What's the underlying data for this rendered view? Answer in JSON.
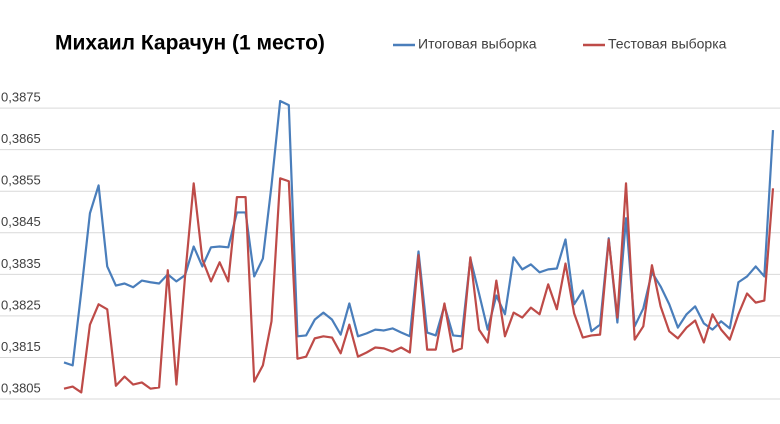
{
  "chart_data": {
    "type": "line",
    "title": "Михаил Карачун  (1 место)",
    "ylim": [
      0.3799,
      0.3901
    ],
    "yticks": [
      {
        "value": 0.3805,
        "label": "0,3805"
      },
      {
        "value": 0.3815,
        "label": "0,3815"
      },
      {
        "value": 0.3825,
        "label": "0,3825"
      },
      {
        "value": 0.3835,
        "label": "0,3835"
      },
      {
        "value": 0.3845,
        "label": "0,3845"
      },
      {
        "value": 0.3855,
        "label": "0,3855"
      },
      {
        "value": 0.3865,
        "label": "0,3865"
      },
      {
        "value": 0.3875,
        "label": "0,3875"
      }
    ],
    "grid": true,
    "series": [
      {
        "name": "Итоговая выборка",
        "color": "#4a7ebb",
        "values": [
          0.38138,
          0.38131,
          0.38309,
          0.38497,
          0.38564,
          0.38369,
          0.38323,
          0.38328,
          0.38319,
          0.38335,
          0.38331,
          0.38328,
          0.3835,
          0.38333,
          0.38348,
          0.38417,
          0.38369,
          0.38415,
          0.38417,
          0.38415,
          0.38499,
          0.38499,
          0.38345,
          0.38388,
          0.38564,
          0.38767,
          0.38757,
          0.38201,
          0.38203,
          0.38241,
          0.38258,
          0.38241,
          0.38205,
          0.3828,
          0.38201,
          0.38208,
          0.38217,
          0.38215,
          0.3822,
          0.3821,
          0.38201,
          0.38405,
          0.3821,
          0.38203,
          0.38275,
          0.38203,
          0.38201,
          0.38388,
          0.38304,
          0.38217,
          0.38299,
          0.38254,
          0.38391,
          0.38362,
          0.38374,
          0.38355,
          0.38362,
          0.38364,
          0.38434,
          0.38278,
          0.38311,
          0.38213,
          0.38229,
          0.38437,
          0.38234,
          0.38485,
          0.38225,
          0.38268,
          0.38355,
          0.38321,
          0.38278,
          0.38222,
          0.38254,
          0.38273,
          0.38232,
          0.38217,
          0.38237,
          0.3822,
          0.38331,
          0.38345,
          0.38369,
          0.38345,
          0.38697
        ]
      },
      {
        "name": "Тестовая выборка",
        "color": "#be4b48",
        "values": [
          0.38075,
          0.3808,
          0.38066,
          0.38229,
          0.38278,
          0.38266,
          0.38082,
          0.38104,
          0.38085,
          0.3809,
          0.38075,
          0.38078,
          0.3836,
          0.38085,
          0.38345,
          0.38569,
          0.38386,
          0.38333,
          0.38379,
          0.38333,
          0.38536,
          0.38536,
          0.38092,
          0.38131,
          0.38237,
          0.38581,
          0.38574,
          0.38147,
          0.38152,
          0.38196,
          0.38201,
          0.38198,
          0.3816,
          0.38229,
          0.38152,
          0.38162,
          0.38174,
          0.38172,
          0.38164,
          0.38174,
          0.38162,
          0.38396,
          0.38169,
          0.38169,
          0.3828,
          0.38164,
          0.38172,
          0.38391,
          0.38217,
          0.38186,
          0.38335,
          0.38201,
          0.38258,
          0.38246,
          0.3827,
          0.38254,
          0.38326,
          0.38266,
          0.38376,
          0.38256,
          0.38198,
          0.38203,
          0.38205,
          0.38434,
          0.38246,
          0.38569,
          0.38193,
          0.38225,
          0.38372,
          0.38273,
          0.38213,
          0.38196,
          0.38222,
          0.38239,
          0.38186,
          0.38254,
          0.38217,
          0.38193,
          0.38254,
          0.38304,
          0.38282,
          0.38287,
          0.38557
        ]
      }
    ]
  }
}
